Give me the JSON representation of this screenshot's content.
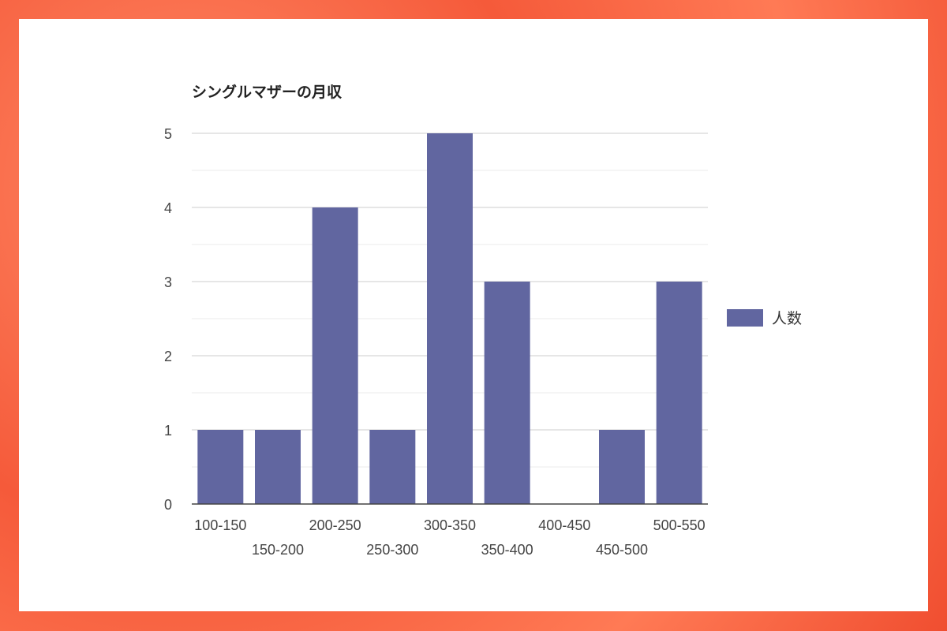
{
  "chart_data": {
    "type": "bar",
    "title": "シングルマザーの月収",
    "categories": [
      "100-150",
      "150-200",
      "200-250",
      "250-300",
      "300-350",
      "350-400",
      "400-450",
      "450-500",
      "500-550"
    ],
    "series": [
      {
        "name": "人数",
        "values": [
          1,
          1,
          4,
          1,
          5,
          3,
          0,
          1,
          3
        ],
        "color": "#6166a0"
      }
    ],
    "xlabel": "",
    "ylabel": "",
    "ylim": [
      0,
      5
    ],
    "yticks": [
      0,
      1,
      2,
      3,
      4,
      5
    ],
    "grid": true,
    "legend": "right"
  }
}
